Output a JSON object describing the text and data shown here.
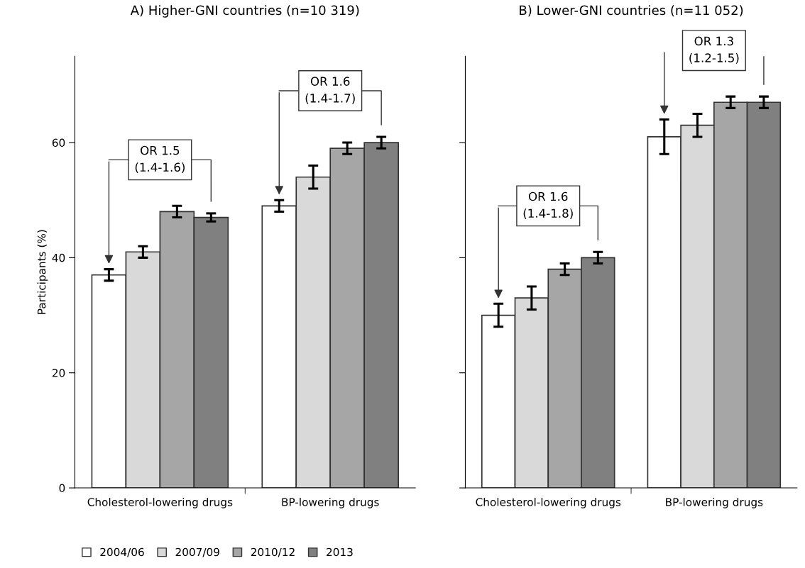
{
  "chart_data": [
    {
      "type": "bar",
      "title": "A) Higher-GNI countries (n=10 319)",
      "ylabel": "Participants (%)",
      "categories": [
        "Cholesterol-lowering drugs",
        "BP-lowering drugs"
      ],
      "ylim": [
        0,
        75
      ],
      "yticks": [
        0,
        20,
        40,
        60
      ],
      "grid": false,
      "legend": "bottom",
      "series": [
        {
          "name": "2004/06",
          "color": "#ffffff",
          "values": [
            37,
            49
          ],
          "errors": [
            1,
            1
          ]
        },
        {
          "name": "2007/09",
          "color": "#d9d9d9",
          "values": [
            41,
            54
          ],
          "errors": [
            1,
            2
          ]
        },
        {
          "name": "2010/12",
          "color": "#a6a6a6",
          "values": [
            48,
            59
          ],
          "errors": [
            1,
            1
          ]
        },
        {
          "name": "2013",
          "color": "#808080",
          "values": [
            47,
            60
          ],
          "errors": [
            0.7,
            1
          ]
        }
      ],
      "annotations": [
        "OR 1.5\n(1.4-1.6)",
        "OR 1.6\n(1.4-1.7)"
      ]
    },
    {
      "type": "bar",
      "title": "B) Lower-GNI countries (n=11 052)",
      "categories": [
        "Cholesterol-lowering drugs",
        "BP-lowering drugs"
      ],
      "ylim": [
        0,
        75
      ],
      "yticks": [
        0,
        20,
        40,
        60
      ],
      "tick_labels": "x",
      "grid": false,
      "series": [
        {
          "color": "#ffffff",
          "values": [
            30,
            61
          ],
          "errors": [
            2,
            3
          ]
        },
        {
          "color": "#d9d9d9",
          "values": [
            33,
            63
          ],
          "errors": [
            2,
            2
          ]
        },
        {
          "color": "#a6a6a6",
          "values": [
            38,
            67
          ],
          "errors": [
            1,
            1
          ]
        },
        {
          "color": "#808080",
          "values": [
            40,
            67
          ],
          "errors": [
            1,
            1
          ]
        }
      ],
      "annotations": [
        "OR 1.6\n(1.4-1.8)",
        "OR 1.3\n(1.2-1.5)"
      ]
    }
  ]
}
